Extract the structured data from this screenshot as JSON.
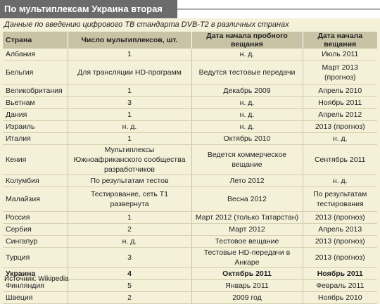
{
  "title": "По мультиплексам Украина вторая",
  "subtitle": "Данные по введению цифрового ТВ стандарта DVB-T2 в различных странах",
  "headers": [
    "Страна",
    "Число мультиплексов, шт.",
    "Дата начала пробного вещания",
    "Дата начала вещания"
  ],
  "rows": [
    [
      "Албания",
      "1",
      "н. д.",
      "Июль 2011"
    ],
    [
      "Бельгия",
      "Для трансляции HD-программ",
      "Ведутся тестовые передачи",
      "Март 2013 (прогноз)"
    ],
    [
      "Великобритания",
      "1",
      "Декабрь 2009",
      "Апрель 2010"
    ],
    [
      "Вьетнам",
      "3",
      "н. д.",
      "Ноябрь 2011"
    ],
    [
      "Дания",
      "1",
      "н. д.",
      "Апрель 2012"
    ],
    [
      "Израиль",
      "н. д.",
      "н. д.",
      "2013 (прогноз)"
    ],
    [
      "Италия",
      "1",
      "Октябрь 2010",
      "н. д."
    ],
    [
      "Кения",
      "Мультиплексы Южноафриканского сообщества разработчиков",
      "Ведется коммерческое вещание",
      "Сентябрь 2011"
    ],
    [
      "Колумбия",
      "По результатам тестов",
      "Лето 2012",
      "н. д."
    ],
    [
      "Малайзия",
      "Тестирование, сеть Т1 развернута",
      "Весна 2012",
      "По результатам тестирования"
    ],
    [
      "Россия",
      "1",
      "Март 2012 (только Татарстан)",
      "2013 (прогноз)"
    ],
    [
      "Сербия",
      "2",
      "Март 2012",
      "Апрель 2013"
    ],
    [
      "Сингапур",
      "н. д.",
      "Тестовое вещание",
      "2013 (прогноз)"
    ],
    [
      "Турция",
      "3",
      "Тестовые HD-передачи в Анкаре",
      "2013 (прогноз)"
    ],
    [
      "Украина",
      "4",
      "Октябрь 2011",
      "Ноябрь 2011"
    ],
    [
      "Финляндия",
      "5",
      "Январь 2011",
      "Февраль 2011"
    ],
    [
      "Швеция",
      "2",
      "2009 год",
      "Ноябрь 2010"
    ]
  ],
  "source": "Источник: Wikipedia"
}
